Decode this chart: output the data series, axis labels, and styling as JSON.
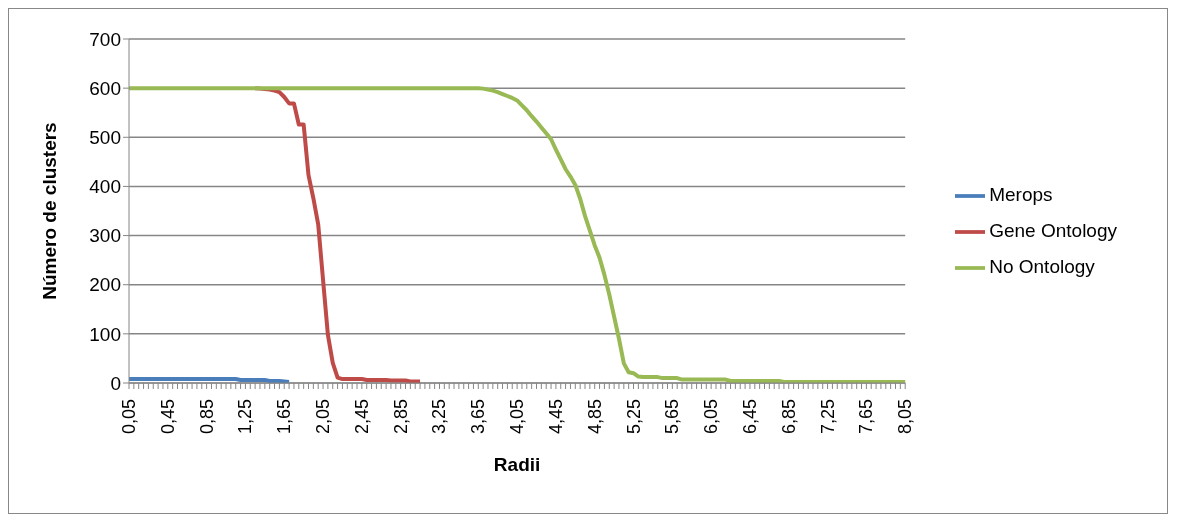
{
  "chart_data": {
    "type": "line",
    "xlabel": "Radii",
    "ylabel": "Número de clusters",
    "categories": [
      "0,05",
      null,
      null,
      null,
      null,
      null,
      null,
      null,
      "0,45",
      null,
      null,
      null,
      null,
      null,
      null,
      null,
      "0,85",
      null,
      null,
      null,
      null,
      null,
      null,
      null,
      "1,25",
      null,
      null,
      null,
      null,
      null,
      null,
      null,
      "1,65",
      null,
      null,
      null,
      null,
      null,
      null,
      null,
      "2,05",
      null,
      null,
      null,
      null,
      null,
      null,
      null,
      "2,45",
      null,
      null,
      null,
      null,
      null,
      null,
      null,
      "2,85",
      null,
      null,
      null,
      null,
      null,
      null,
      null,
      "3,25",
      null,
      null,
      null,
      null,
      null,
      null,
      null,
      "3,65",
      null,
      null,
      null,
      null,
      null,
      null,
      null,
      "4,05",
      null,
      null,
      null,
      null,
      null,
      null,
      null,
      "4,45",
      null,
      null,
      null,
      null,
      null,
      null,
      null,
      "4,85",
      null,
      null,
      null,
      null,
      null,
      null,
      null,
      "5,25",
      null,
      null,
      null,
      null,
      null,
      null,
      null,
      "5,65",
      null,
      null,
      null,
      null,
      null,
      null,
      null,
      "6,05",
      null,
      null,
      null,
      null,
      null,
      null,
      null,
      "6,45",
      null,
      null,
      null,
      null,
      null,
      null,
      null,
      "6,85",
      null,
      null,
      null,
      null,
      null,
      null,
      null,
      "7,25",
      null,
      null,
      null,
      null,
      null,
      null,
      null,
      "7,65",
      null,
      null,
      null,
      null,
      null,
      null,
      null,
      "8,05"
    ],
    "series": [
      {
        "name": "Merops",
        "color": "#4a7ebb",
        "values": [
          8,
          8,
          8,
          8,
          8,
          8,
          8,
          8,
          8,
          8,
          8,
          8,
          8,
          8,
          8,
          8,
          8,
          8,
          8,
          8,
          8,
          8,
          8,
          6,
          6,
          6,
          6,
          6,
          6,
          4,
          4,
          4,
          3,
          2,
          null,
          null,
          null,
          null,
          null,
          null,
          null,
          null,
          null,
          null,
          null,
          null,
          null,
          null,
          null,
          null,
          null,
          null,
          null,
          null,
          null,
          null,
          null,
          null,
          null,
          null,
          null,
          null,
          null,
          null,
          null,
          null,
          null,
          null,
          null,
          null,
          null,
          null,
          null,
          null,
          null,
          null,
          null,
          null,
          null,
          null,
          null,
          null,
          null,
          null,
          null,
          null,
          null,
          null,
          null,
          null,
          null,
          null,
          null,
          null,
          null,
          null,
          null,
          null,
          null,
          null,
          null,
          null,
          null,
          null,
          null,
          null,
          null,
          null,
          null,
          null,
          null,
          null,
          null,
          null,
          null,
          null,
          null,
          null,
          null,
          null,
          null,
          null,
          null,
          null,
          null,
          null,
          null,
          null,
          null,
          null,
          null,
          null,
          null,
          null,
          null,
          null,
          null,
          null,
          null,
          null,
          null,
          null,
          null,
          null,
          null,
          null,
          null,
          null,
          null,
          null,
          null,
          null,
          null,
          null,
          null,
          null,
          null,
          null,
          null,
          null,
          null
        ]
      },
      {
        "name": "Gene Ontology",
        "color": "#be4b48",
        "values": [
          null,
          null,
          null,
          null,
          null,
          null,
          null,
          null,
          null,
          null,
          null,
          null,
          null,
          null,
          null,
          null,
          null,
          null,
          null,
          null,
          null,
          null,
          null,
          null,
          null,
          null,
          600,
          599,
          598,
          597,
          595,
          592,
          582,
          569,
          569,
          526,
          526,
          423,
          376,
          323,
          210,
          98,
          41,
          11,
          8,
          8,
          8,
          8,
          8,
          6,
          6,
          6,
          6,
          6,
          5,
          5,
          5,
          5,
          3,
          3,
          3,
          null,
          null,
          null,
          null,
          null,
          null,
          null,
          null,
          null,
          null,
          null,
          null,
          null,
          null,
          null,
          null,
          null,
          null,
          null,
          null,
          null,
          null,
          null,
          null,
          null,
          null,
          null,
          null,
          null,
          null,
          null,
          null,
          null,
          null,
          null,
          null,
          null,
          null,
          null,
          null,
          null,
          null,
          null,
          null,
          null,
          null,
          null,
          null,
          null,
          null,
          null,
          null,
          null,
          null,
          null,
          null,
          null,
          null,
          null,
          null,
          null,
          null,
          null,
          null,
          null,
          null,
          null,
          null,
          null,
          null,
          null,
          null,
          null,
          null,
          null,
          null,
          null,
          null,
          null,
          null,
          null,
          null,
          null,
          null,
          null,
          null,
          null,
          null,
          null,
          null,
          null,
          null,
          null,
          null,
          null,
          null,
          null,
          null,
          null,
          null
        ]
      },
      {
        "name": "No Ontology",
        "color": "#98b954",
        "values": [
          600,
          600,
          600,
          600,
          600,
          600,
          600,
          600,
          600,
          600,
          600,
          600,
          600,
          600,
          600,
          600,
          600,
          600,
          600,
          600,
          600,
          600,
          600,
          600,
          600,
          600,
          600,
          600,
          600,
          600,
          600,
          600,
          600,
          600,
          600,
          600,
          600,
          600,
          600,
          600,
          600,
          600,
          600,
          600,
          600,
          600,
          600,
          600,
          600,
          600,
          600,
          600,
          600,
          600,
          600,
          600,
          600,
          600,
          600,
          600,
          600,
          600,
          600,
          600,
          600,
          600,
          600,
          600,
          600,
          600,
          600,
          600,
          600,
          599,
          597,
          595,
          592,
          588,
          584,
          580,
          575,
          565,
          555,
          543,
          532,
          520,
          508,
          496,
          475,
          455,
          435,
          420,
          403,
          375,
          340,
          310,
          280,
          255,
          220,
          180,
          135,
          90,
          40,
          22,
          20,
          13,
          12,
          12,
          12,
          12,
          10,
          10,
          10,
          10,
          7,
          7,
          7,
          7,
          7,
          7,
          7,
          7,
          7,
          7,
          4,
          4,
          4,
          4,
          4,
          4,
          4,
          4,
          4,
          4,
          4,
          2,
          2,
          2,
          2,
          2,
          2,
          2,
          2,
          2,
          2,
          2,
          2,
          2,
          2,
          2,
          2,
          2,
          2,
          2,
          2,
          2,
          2,
          2,
          2,
          2,
          2
        ]
      }
    ],
    "ylim": [
      0,
      700
    ],
    "yticks": [
      0,
      100,
      200,
      300,
      400,
      500,
      600,
      700
    ],
    "grid": "y",
    "legend": "right",
    "marker": "none",
    "line_style": "solid"
  }
}
